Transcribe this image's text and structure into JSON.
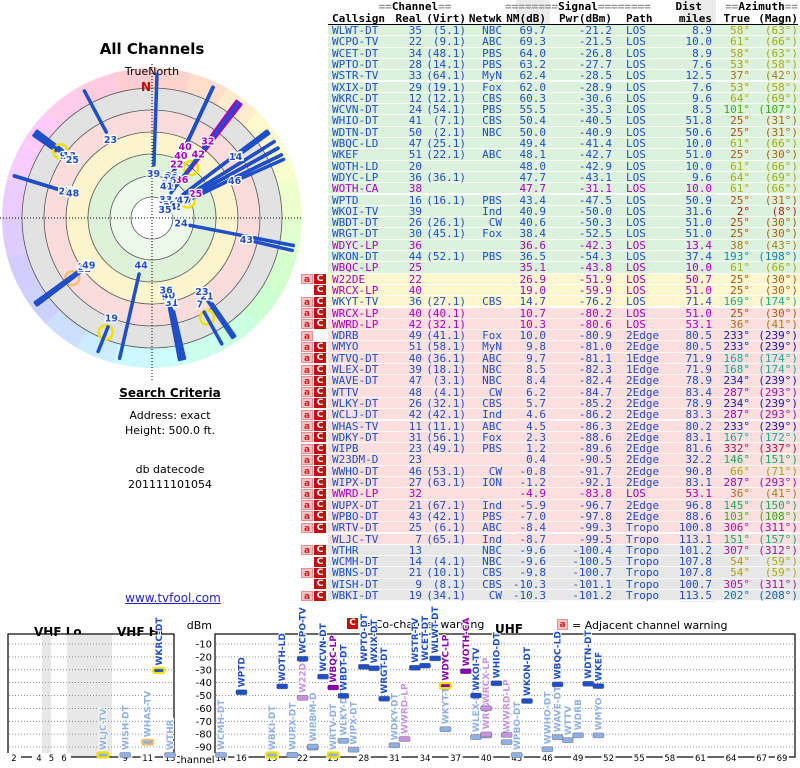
{
  "polar_chart": {
    "title": "All Channels",
    "north_label": "TrueNorth",
    "north_letter": "N"
  },
  "search": {
    "title": "Search Criteria",
    "line1": "Address: exact",
    "line2": "Height: 500.0 ft.",
    "db_label": "db datecode",
    "db_value": "201111101054"
  },
  "link": {
    "text": "www.tvfool.com"
  },
  "legend": {
    "co_badge": "C",
    "co_text": "= Co-channel warning",
    "adj_badge": "a",
    "adj_text": "= Adjacent channel warning"
  },
  "table_header": {
    "channel_pre": "==",
    "channel": "Channel",
    "channel_post": "==",
    "signal_pre": "========",
    "signal": "Signal",
    "signal_post": "========",
    "dist": "Dist",
    "azimuth_pre": "==",
    "azimuth": "Azimuth",
    "azimuth_post": "==",
    "cols": {
      "callsign": "Callsign",
      "real": "Real",
      "virt": "(Virt)",
      "net": "Netwk",
      "nm": "NM(dB)",
      "pwr": "Pwr(dBm)",
      "path": "Path",
      "miles": "miles",
      "true": "True",
      "magn": "(Magn)"
    }
  },
  "bottom_chart": {
    "ylabel": "dBm",
    "xlabel": "Channel",
    "bands": {
      "lo": "VHF Lo",
      "hi": "VHF Hi",
      "uhf": "UHF"
    },
    "yticks": [
      "-10",
      "-20",
      "-30",
      "-40",
      "-50",
      "-60",
      "-70",
      "-80",
      "-90"
    ],
    "vhf_ticks": [
      2,
      4,
      5,
      6,
      9,
      11,
      13
    ],
    "uhf_ticks": [
      14,
      16,
      19,
      22,
      25,
      28,
      31,
      34,
      37,
      40,
      43,
      46,
      49,
      52,
      55,
      58,
      61,
      64,
      67,
      69
    ]
  },
  "colors": {
    "blue": "#1e4fc8",
    "pale_blue": "#8fb0e4",
    "magenta": "#a800c0",
    "pale_magenta": "#c793dd",
    "dark_magenta": "#8a00b0",
    "zone_green": "#ddf2dc",
    "zone_yellow": "#fcf7cf",
    "zone_pink": "#fbdede",
    "zone_gray": "#e7e7e7",
    "ring_yellow": "#f2e000",
    "ring_peach": "#f0c070",
    "north_red": "#cc0000"
  },
  "chart_data": {
    "type": "table",
    "title": "All Channels",
    "columns": [
      "Callsign",
      "Real",
      "(Virt)",
      "Netwk",
      "NM(dB)",
      "Pwr(dBm)",
      "Path",
      "miles",
      "True",
      "(Magn)"
    ],
    "rows": [
      {
        "callsign": "WLWT-DT",
        "real": 35,
        "virt": "(5.1)",
        "net": "NBC",
        "nm": "69.7",
        "pwr": "-21.2",
        "path": "LOS",
        "mi": "8.9",
        "az": 58,
        "mag": 63,
        "zone": "g",
        "lp": 0,
        "badge": "",
        "ring": ""
      },
      {
        "callsign": "WCPO-TV",
        "real": 22,
        "virt": "(9.1)",
        "net": "ABC",
        "nm": "69.3",
        "pwr": "-21.5",
        "path": "LOS",
        "mi": "10.0",
        "az": 61,
        "mag": 66,
        "zone": "g",
        "lp": 0,
        "badge": "",
        "ring": ""
      },
      {
        "callsign": "WCET-DT",
        "real": 34,
        "virt": "(48.1)",
        "net": "PBS",
        "nm": "64.0",
        "pwr": "-26.8",
        "path": "LOS",
        "mi": "8.9",
        "az": 58,
        "mag": 63,
        "zone": "g",
        "lp": 0,
        "badge": "",
        "ring": ""
      },
      {
        "callsign": "WPTO-DT",
        "real": 28,
        "virt": "(14.1)",
        "net": "PBS",
        "nm": "63.2",
        "pwr": "-27.7",
        "path": "LOS",
        "mi": "7.6",
        "az": 53,
        "mag": 58,
        "zone": "g",
        "lp": 0,
        "badge": "",
        "ring": ""
      },
      {
        "callsign": "WSTR-TV",
        "real": 33,
        "virt": "(64.1)",
        "net": "MyN",
        "nm": "62.4",
        "pwr": "-28.5",
        "path": "LOS",
        "mi": "12.5",
        "az": 37,
        "mag": 42,
        "zone": "g",
        "lp": 0,
        "badge": "",
        "ring": ""
      },
      {
        "callsign": "WXIX-DT",
        "real": 29,
        "virt": "(19.1)",
        "net": "Fox",
        "nm": "62.0",
        "pwr": "-28.9",
        "path": "LOS",
        "mi": "7.6",
        "az": 53,
        "mag": 58,
        "zone": "g",
        "lp": 0,
        "badge": "",
        "ring": ""
      },
      {
        "callsign": "WKRC-DT",
        "real": 12,
        "virt": "(12.1)",
        "net": "CBS",
        "nm": "60.3",
        "pwr": "-30.6",
        "path": "LOS",
        "mi": "9.6",
        "az": 64,
        "mag": 69,
        "zone": "g",
        "lp": 0,
        "badge": "",
        "ring": "yellow"
      },
      {
        "callsign": "WCVN-DT",
        "real": 24,
        "virt": "(54.1)",
        "net": "PBS",
        "nm": "55.5",
        "pwr": "-35.3",
        "path": "LOS",
        "mi": "8.5",
        "az": 101,
        "mag": 107,
        "zone": "g",
        "lp": 0,
        "badge": "",
        "ring": ""
      },
      {
        "callsign": "WHIO-DT",
        "real": 41,
        "virt": "(7.1)",
        "net": "CBS",
        "nm": "50.4",
        "pwr": "-40.5",
        "path": "LOS",
        "mi": "51.8",
        "az": 25,
        "mag": 31,
        "zone": "g",
        "lp": 0,
        "badge": "",
        "ring": ""
      },
      {
        "callsign": "WDTN-DT",
        "real": 50,
        "virt": "(2.1)",
        "net": "NBC",
        "nm": "50.0",
        "pwr": "-40.9",
        "path": "LOS",
        "mi": "50.6",
        "az": 25,
        "mag": 31,
        "zone": "g",
        "lp": 0,
        "badge": "",
        "ring": ""
      },
      {
        "callsign": "WBQC-LD",
        "real": 47,
        "virt": "(25.1)",
        "net": "",
        "nm": "49.4",
        "pwr": "-41.4",
        "path": "LOS",
        "mi": "10.0",
        "az": 61,
        "mag": 66,
        "zone": "g",
        "lp": 0,
        "badge": "",
        "ring": ""
      },
      {
        "callsign": "WKEF",
        "real": 51,
        "virt": "(22.1)",
        "net": "ABC",
        "nm": "48.1",
        "pwr": "-42.7",
        "path": "LOS",
        "mi": "51.0",
        "az": 25,
        "mag": 30,
        "zone": "g",
        "lp": 0,
        "badge": "",
        "ring": ""
      },
      {
        "callsign": "WOTH-LD",
        "real": 20,
        "virt": "",
        "net": "",
        "nm": "48.0",
        "pwr": "-42.9",
        "path": "LOS",
        "mi": "10.0",
        "az": 61,
        "mag": 66,
        "zone": "g",
        "lp": 0,
        "badge": "",
        "ring": ""
      },
      {
        "callsign": "WDYC-LP",
        "real": 36,
        "virt": "(36.1)",
        "net": "",
        "nm": "47.7",
        "pwr": "-43.1",
        "path": "LOS",
        "mi": "9.6",
        "az": 64,
        "mag": 69,
        "zone": "g",
        "lp": 0,
        "badge": "",
        "ring": ""
      },
      {
        "callsign": "WOTH-CA",
        "real": 38,
        "virt": "",
        "net": "",
        "nm": "47.7",
        "pwr": "-31.1",
        "path": "LOS",
        "mi": "10.0",
        "az": 61,
        "mag": 66,
        "zone": "g",
        "lp": 1,
        "badge": "",
        "ring": ""
      },
      {
        "callsign": "WPTD",
        "real": 16,
        "virt": "(16.1)",
        "net": "PBS",
        "nm": "43.4",
        "pwr": "-47.5",
        "path": "LOS",
        "mi": "50.9",
        "az": 25,
        "mag": 31,
        "zone": "g",
        "lp": 0,
        "badge": "",
        "ring": ""
      },
      {
        "callsign": "WKOI-TV",
        "real": 39,
        "virt": "",
        "net": "Ind",
        "nm": "40.9",
        "pwr": "-50.0",
        "path": "LOS",
        "mi": "31.6",
        "az": 2,
        "mag": 8,
        "zone": "g",
        "lp": 0,
        "badge": "",
        "ring": ""
      },
      {
        "callsign": "WBDT-DT",
        "real": 26,
        "virt": "(26.1)",
        "net": "CW",
        "nm": "40.6",
        "pwr": "-50.3",
        "path": "LOS",
        "mi": "51.0",
        "az": 25,
        "mag": 30,
        "zone": "g",
        "lp": 0,
        "badge": "",
        "ring": ""
      },
      {
        "callsign": "WRGT-DT",
        "real": 30,
        "virt": "(45.1)",
        "net": "Fox",
        "nm": "38.4",
        "pwr": "-52.5",
        "path": "LOS",
        "mi": "51.0",
        "az": 25,
        "mag": 30,
        "zone": "g",
        "lp": 0,
        "badge": "",
        "ring": ""
      },
      {
        "callsign": "WDYC-LP",
        "real": 36,
        "virt": "",
        "net": "",
        "nm": "36.6",
        "pwr": "-42.3",
        "path": "LOS",
        "mi": "13.4",
        "az": 38,
        "mag": 43,
        "zone": "g",
        "lp": 1,
        "badge": "",
        "ring": "yellow"
      },
      {
        "callsign": "WKON-DT",
        "real": 44,
        "virt": "(52.1)",
        "net": "PBS",
        "nm": "36.5",
        "pwr": "-54.3",
        "path": "LOS",
        "mi": "37.4",
        "az": 193,
        "mag": 198,
        "zone": "g",
        "lp": 0,
        "badge": "",
        "ring": ""
      },
      {
        "callsign": "WBQC-LP",
        "real": 25,
        "virt": "",
        "net": "",
        "nm": "35.1",
        "pwr": "-43.8",
        "path": "LOS",
        "mi": "10.0",
        "az": 61,
        "mag": 66,
        "zone": "g",
        "lp": 1,
        "badge": "",
        "ring": ""
      },
      {
        "callsign": "W22DE",
        "real": 22,
        "virt": "",
        "net": "",
        "nm": "26.9",
        "pwr": "-51.9",
        "path": "LOS",
        "mi": "50.7",
        "az": 25,
        "mag": 30,
        "zone": "y",
        "lp": 1,
        "badge": "aC",
        "ring": ""
      },
      {
        "callsign": "WRCX-LP",
        "real": 40,
        "virt": "",
        "net": "",
        "nm": "19.0",
        "pwr": "-59.9",
        "path": "LOS",
        "mi": "51.0",
        "az": 25,
        "mag": 30,
        "zone": "y",
        "lp": 1,
        "badge": "C",
        "ring": ""
      },
      {
        "callsign": "WKYT-TV",
        "real": 36,
        "virt": "(27.1)",
        "net": "CBS",
        "nm": "14.7",
        "pwr": "-76.2",
        "path": "LOS",
        "mi": "71.4",
        "az": 169,
        "mag": 174,
        "zone": "y",
        "lp": 0,
        "badge": "aC",
        "ring": ""
      },
      {
        "callsign": "WRCX-LP",
        "real": 40,
        "virt": "(40.1)",
        "net": "",
        "nm": "10.7",
        "pwr": "-80.2",
        "path": "LOS",
        "mi": "51.0",
        "az": 25,
        "mag": 30,
        "zone": "p",
        "lp": 1,
        "badge": "aC",
        "ring": ""
      },
      {
        "callsign": "WWRD-LP",
        "real": 42,
        "virt": "(32.1)",
        "net": "",
        "nm": "10.3",
        "pwr": "-80.6",
        "path": "LOS",
        "mi": "53.1",
        "az": 36,
        "mag": 41,
        "zone": "p",
        "lp": 1,
        "badge": "aC",
        "ring": ""
      },
      {
        "callsign": "WDRB",
        "real": 49,
        "virt": "(41.1)",
        "net": "Fox",
        "nm": "10.0",
        "pwr": "-80.9",
        "path": "2Edge",
        "mi": "80.5",
        "az": 233,
        "mag": 239,
        "zone": "p",
        "lp": 0,
        "badge": "a",
        "ring": ""
      },
      {
        "callsign": "WMYO",
        "real": 51,
        "virt": "(58.1)",
        "net": "MyN",
        "nm": "9.8",
        "pwr": "-81.0",
        "path": "2Edge",
        "mi": "80.5",
        "az": 233,
        "mag": 239,
        "zone": "p",
        "lp": 0,
        "badge": "aC",
        "ring": ""
      },
      {
        "callsign": "WTVQ-DT",
        "real": 40,
        "virt": "(36.1)",
        "net": "ABC",
        "nm": "9.7",
        "pwr": "-81.1",
        "path": "1Edge",
        "mi": "71.9",
        "az": 168,
        "mag": 174,
        "zone": "p",
        "lp": 0,
        "badge": "aC",
        "ring": ""
      },
      {
        "callsign": "WLEX-DT",
        "real": 39,
        "virt": "(18.1)",
        "net": "NBC",
        "nm": "8.5",
        "pwr": "-82.3",
        "path": "1Edge",
        "mi": "71.9",
        "az": 168,
        "mag": 174,
        "zone": "p",
        "lp": 0,
        "badge": "aC",
        "ring": ""
      },
      {
        "callsign": "WAVE-DT",
        "real": 47,
        "virt": "(3.1)",
        "net": "NBC",
        "nm": "8.4",
        "pwr": "-82.4",
        "path": "2Edge",
        "mi": "78.9",
        "az": 234,
        "mag": 239,
        "zone": "p",
        "lp": 0,
        "badge": "aC",
        "ring": ""
      },
      {
        "callsign": "WTTV",
        "real": 48,
        "virt": "(4.1)",
        "net": "CW",
        "nm": "6.2",
        "pwr": "-84.7",
        "path": "2Edge",
        "mi": "83.4",
        "az": 287,
        "mag": 293,
        "zone": "p",
        "lp": 0,
        "badge": "aC",
        "ring": ""
      },
      {
        "callsign": "WLKY-DT",
        "real": 26,
        "virt": "(32.1)",
        "net": "CBS",
        "nm": "5.7",
        "pwr": "-85.2",
        "path": "2Edge",
        "mi": "78.9",
        "az": 234,
        "mag": 239,
        "zone": "p",
        "lp": 0,
        "badge": "aC",
        "ring": ""
      },
      {
        "callsign": "WCLJ-DT",
        "real": 42,
        "virt": "(42.1)",
        "net": "Ind",
        "nm": "4.6",
        "pwr": "-86.2",
        "path": "2Edge",
        "mi": "83.3",
        "az": 287,
        "mag": 293,
        "zone": "p",
        "lp": 0,
        "badge": "aC",
        "ring": ""
      },
      {
        "callsign": "WHAS-TV",
        "real": 11,
        "virt": "(11.1)",
        "net": "ABC",
        "nm": "4.5",
        "pwr": "-86.3",
        "path": "2Edge",
        "mi": "80.2",
        "az": 233,
        "mag": 239,
        "zone": "p",
        "lp": 0,
        "badge": "aC",
        "ring": "peach"
      },
      {
        "callsign": "WDKY-DT",
        "real": 31,
        "virt": "(56.1)",
        "net": "Fox",
        "nm": "2.3",
        "pwr": "-88.6",
        "path": "2Edge",
        "mi": "83.1",
        "az": 167,
        "mag": 172,
        "zone": "p",
        "lp": 0,
        "badge": "aC",
        "ring": ""
      },
      {
        "callsign": "WIPB",
        "real": 23,
        "virt": "(49.1)",
        "net": "PBS",
        "nm": "1.2",
        "pwr": "-89.6",
        "path": "2Edge",
        "mi": "81.6",
        "az": 332,
        "mag": 337,
        "zone": "p",
        "lp": 0,
        "badge": "aC",
        "ring": ""
      },
      {
        "callsign": "W23DM-D",
        "real": 23,
        "virt": "",
        "net": "",
        "nm": "0.4",
        "pwr": "-90.5",
        "path": "2Edge",
        "mi": "32.2",
        "az": 146,
        "mag": 151,
        "zone": "p",
        "lp": 0,
        "badge": "aC",
        "ring": ""
      },
      {
        "callsign": "WWHO-DT",
        "real": 46,
        "virt": "(53.1)",
        "net": "CW",
        "nm": "-0.8",
        "pwr": "-91.7",
        "path": "2Edge",
        "mi": "90.8",
        "az": 66,
        "mag": 71,
        "zone": "p",
        "lp": 0,
        "badge": "aC",
        "ring": ""
      },
      {
        "callsign": "WIPX-DT",
        "real": 27,
        "virt": "(63.1)",
        "net": "ION",
        "nm": "-1.2",
        "pwr": "-92.1",
        "path": "2Edge",
        "mi": "83.1",
        "az": 287,
        "mag": 293,
        "zone": "p",
        "lp": 0,
        "badge": "aC",
        "ring": ""
      },
      {
        "callsign": "WWRD-LP",
        "real": 32,
        "virt": "",
        "net": "",
        "nm": "-4.9",
        "pwr": "-83.8",
        "path": "LOS",
        "mi": "53.1",
        "az": 36,
        "mag": 41,
        "zone": "p",
        "lp": 1,
        "badge": "aC",
        "ring": ""
      },
      {
        "callsign": "WUPX-DT",
        "real": 21,
        "virt": "(67.1)",
        "net": "Ind",
        "nm": "-5.9",
        "pwr": "-96.7",
        "path": "2Edge",
        "mi": "96.8",
        "az": 145,
        "mag": 150,
        "zone": "p",
        "lp": 0,
        "badge": "aC",
        "ring": ""
      },
      {
        "callsign": "WPBO-DT",
        "real": 43,
        "virt": "(42.1)",
        "net": "PBS",
        "nm": "-7.0",
        "pwr": "-97.8",
        "path": "2Edge",
        "mi": "88.6",
        "az": 103,
        "mag": 108,
        "zone": "p",
        "lp": 0,
        "badge": "aC",
        "ring": ""
      },
      {
        "callsign": "WRTV-DT",
        "real": 25,
        "virt": "(6.1)",
        "net": "ABC",
        "nm": "-8.4",
        "pwr": "-99.3",
        "path": "Tropo",
        "mi": "100.8",
        "az": 306,
        "mag": 311,
        "zone": "p",
        "lp": 0,
        "badge": "aC",
        "ring": "yellow"
      },
      {
        "callsign": "WLJC-TV",
        "real": 7,
        "virt": "(65.1)",
        "net": "Ind",
        "nm": "-8.7",
        "pwr": "-99.5",
        "path": "Tropo",
        "mi": "113.1",
        "az": 151,
        "mag": 157,
        "zone": "p",
        "lp": 0,
        "badge": "",
        "ring": "yellow"
      },
      {
        "callsign": "WTHR",
        "real": 13,
        "virt": "",
        "net": "NBC",
        "nm": "-9.6",
        "pwr": "-100.4",
        "path": "Tropo",
        "mi": "101.2",
        "az": 307,
        "mag": 312,
        "zone": "gr",
        "lp": 0,
        "badge": "aC",
        "ring": ""
      },
      {
        "callsign": "WCMH-DT",
        "real": 14,
        "virt": "(4.1)",
        "net": "NBC",
        "nm": "-9.6",
        "pwr": "-100.5",
        "path": "Tropo",
        "mi": "107.8",
        "az": 54,
        "mag": 59,
        "zone": "gr",
        "lp": 0,
        "badge": "C",
        "ring": ""
      },
      {
        "callsign": "WBNS-DT",
        "real": 21,
        "virt": "(10.1)",
        "net": "CBS",
        "nm": "-9.8",
        "pwr": "-100.7",
        "path": "Tropo",
        "mi": "107.8",
        "az": 54,
        "mag": 59,
        "zone": "gr",
        "lp": 0,
        "badge": "aC",
        "ring": ""
      },
      {
        "callsign": "WISH-DT",
        "real": 9,
        "virt": "(8.1)",
        "net": "CBS",
        "nm": "-10.3",
        "pwr": "-101.1",
        "path": "Tropo",
        "mi": "100.7",
        "az": 305,
        "mag": 311,
        "zone": "gr",
        "lp": 0,
        "badge": "C",
        "ring": ""
      },
      {
        "callsign": "WBKI-DT",
        "real": 19,
        "virt": "(34.1)",
        "net": "CW",
        "nm": "-10.3",
        "pwr": "-101.2",
        "path": "Tropo",
        "mi": "113.5",
        "az": 202,
        "mag": 208,
        "zone": "gr",
        "lp": 0,
        "badge": "aC",
        "ring": "yellow"
      }
    ]
  }
}
